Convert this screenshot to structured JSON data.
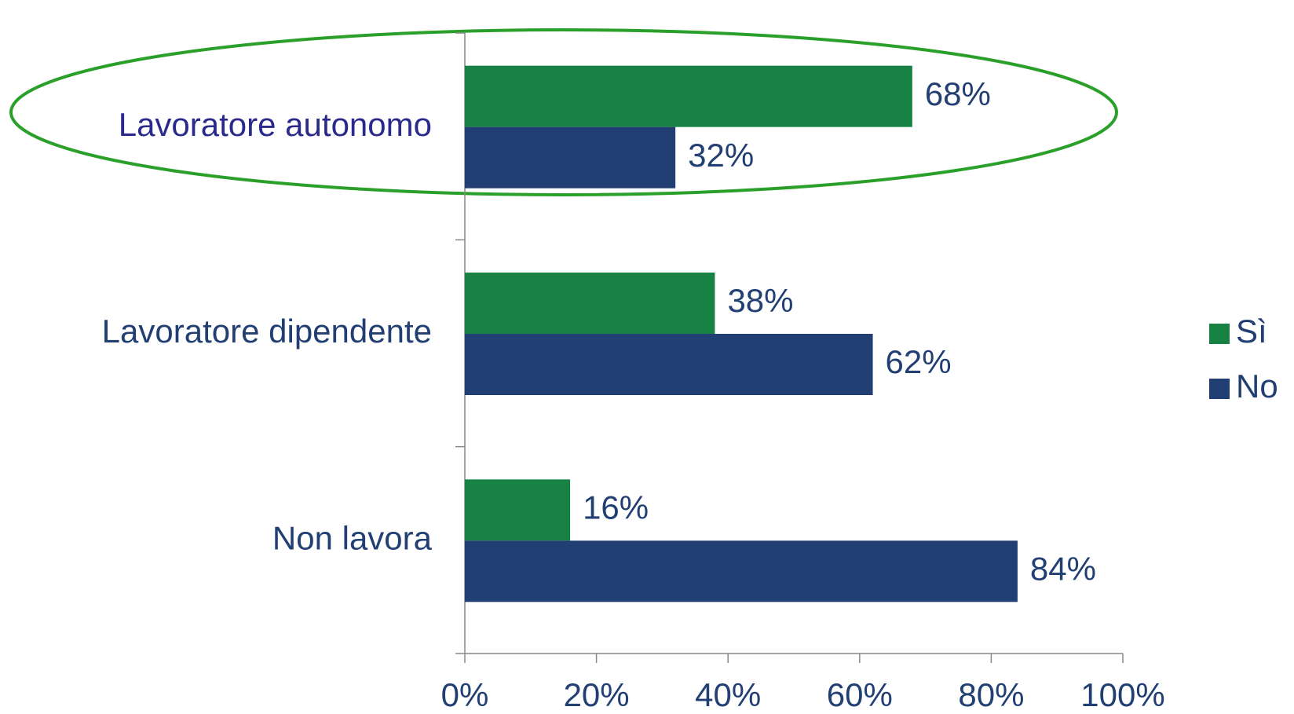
{
  "chart_data": {
    "type": "hbar",
    "categories": [
      "Lavoratore autonomo",
      "Lavoratore dipendente",
      "Non lavora"
    ],
    "series": [
      {
        "name": "Sì",
        "color": "#178244",
        "values": [
          68,
          38,
          16
        ],
        "value_labels": [
          "68%",
          "38%",
          "16%"
        ]
      },
      {
        "name": "No",
        "color": "#223f73",
        "values": [
          32,
          62,
          84
        ],
        "value_labels": [
          "32%",
          "62%",
          "84%"
        ]
      }
    ],
    "xlim": [
      0,
      100
    ],
    "xticks": [
      {
        "value": 0,
        "label": "0%"
      },
      {
        "value": 20,
        "label": "20%"
      },
      {
        "value": 40,
        "label": "40%"
      },
      {
        "value": 60,
        "label": "60%"
      },
      {
        "value": 80,
        "label": "80%"
      },
      {
        "value": 100,
        "label": "100%"
      }
    ],
    "legend": "right"
  }
}
